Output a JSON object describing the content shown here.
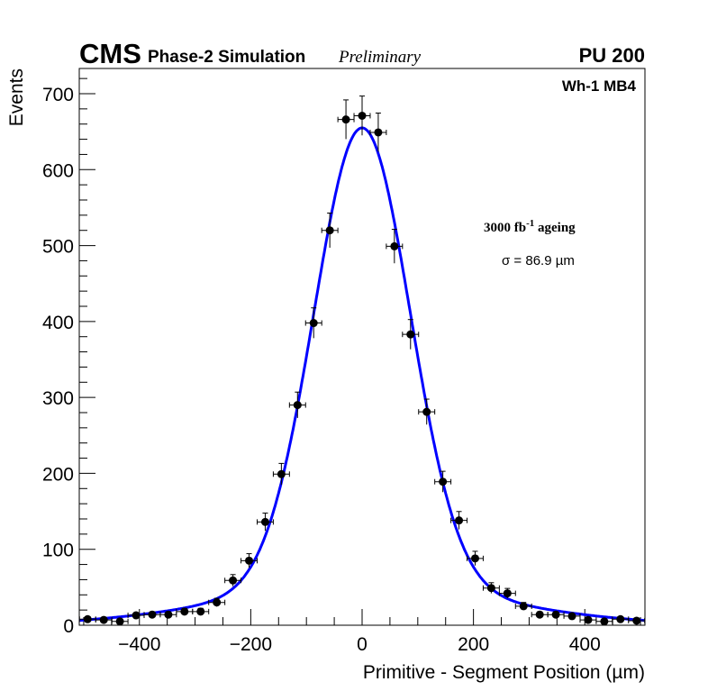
{
  "chart_data": {
    "type": "scatter",
    "title": "",
    "header": {
      "experiment": "CMS",
      "subtitle": "Phase-2 Simulation",
      "status": "Preliminary",
      "pileup": "PU 200"
    },
    "region_label": "Wh-1 MB4",
    "annotations": {
      "ageing_main": "3000 fb",
      "ageing_sup": "-1",
      "ageing_tail": " ageing",
      "sigma": "σ = 86.9 µm"
    },
    "xlabel": "Primitive - Segment Position (µm)",
    "ylabel": "Events",
    "xlim": [
      -508,
      508
    ],
    "ylim": [
      0,
      700
    ],
    "x_ticks": [
      -400,
      -200,
      0,
      200,
      400
    ],
    "x_tick_labels": [
      "−400",
      "−200",
      "0",
      "200",
      "400"
    ],
    "y_ticks": [
      0,
      100,
      200,
      300,
      400,
      500,
      600,
      700
    ],
    "y_tick_labels": [
      "0",
      "100",
      "200",
      "300",
      "400",
      "500",
      "600",
      "700"
    ],
    "bin_width": 29,
    "x": [
      -493,
      -464,
      -435,
      -406,
      -377,
      -348,
      -319,
      -290,
      -261,
      -232,
      -203,
      -174,
      -145,
      -116,
      -87,
      -58,
      -29,
      0,
      29,
      58,
      87,
      116,
      145,
      174,
      203,
      232,
      261,
      290,
      319,
      348,
      377,
      406,
      435,
      464,
      493
    ],
    "values": [
      8,
      7,
      5,
      13,
      14,
      14,
      18,
      18,
      30,
      59,
      85,
      136,
      199,
      290,
      398,
      520,
      666,
      671,
      649,
      499,
      383,
      281,
      189,
      138,
      88,
      49,
      42,
      25,
      14,
      14,
      12,
      7,
      5,
      8,
      6
    ],
    "fit": {
      "name": "Gaussian fit",
      "color": "#0000ff",
      "core_amplitude": 605,
      "core_sigma": 86,
      "tail_amplitude": 50,
      "tail_sigma": 250
    },
    "marker_color": "#000000",
    "grid": false,
    "legend": "none"
  }
}
